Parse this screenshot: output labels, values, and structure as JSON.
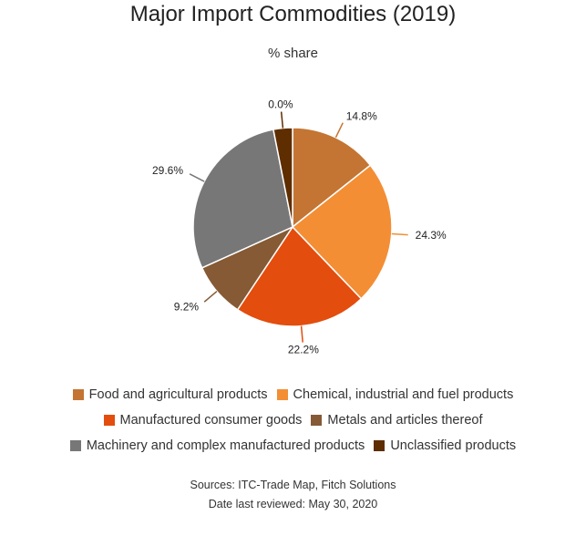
{
  "chart_data": {
    "type": "pie",
    "title": "Major Import Commodities (2019)",
    "subtitle": "% share",
    "slices": [
      {
        "name": "Food and agricultural products",
        "value": 14.8,
        "label": "14.8%",
        "color": "#C47533"
      },
      {
        "name": "Chemical, industrial and fuel products",
        "value": 24.3,
        "label": "24.3%",
        "color": "#F38E35"
      },
      {
        "name": "Manufactured consumer goods",
        "value": 22.2,
        "label": "22.2%",
        "color": "#E34D0E"
      },
      {
        "name": "Metals and articles thereof",
        "value": 9.2,
        "label": "9.2%",
        "color": "#855A35"
      },
      {
        "name": "Machinery and complex manufactured products",
        "value": 29.6,
        "label": "29.6%",
        "color": "#777777"
      },
      {
        "name": "Unclassified products",
        "value": 0.0,
        "label": "0.0%",
        "color": "#5E2D00"
      }
    ],
    "legend_position": "bottom"
  },
  "footer": {
    "sources": "Sources: ITC-Trade Map, Fitch Solutions",
    "reviewed": "Date last reviewed: May 30, 2020"
  }
}
